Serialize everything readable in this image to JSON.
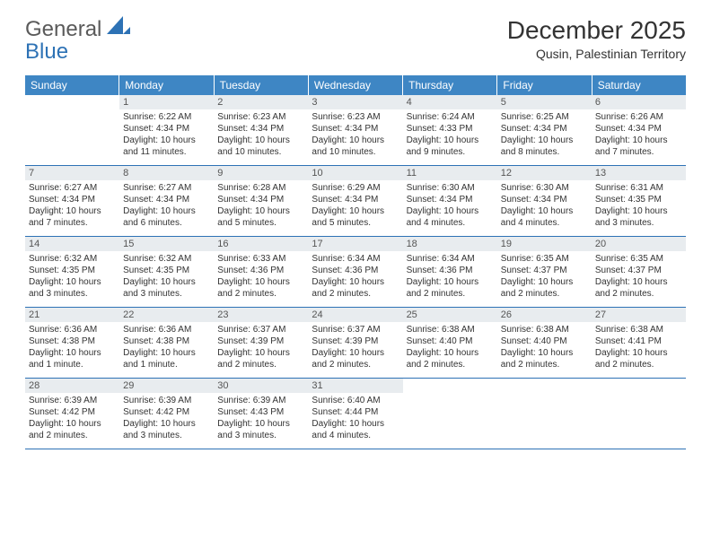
{
  "logo": {
    "part1": "General",
    "part2": "Blue"
  },
  "title": "December 2025",
  "location": "Qusin, Palestinian Territory",
  "colors": {
    "header_bg": "#3e86c4",
    "accent": "#2d72b5",
    "daynum_bg": "#e8ecef",
    "text": "#333333"
  },
  "weekdays": [
    "Sunday",
    "Monday",
    "Tuesday",
    "Wednesday",
    "Thursday",
    "Friday",
    "Saturday"
  ],
  "weeks": [
    [
      null,
      {
        "n": "1",
        "sr": "6:22 AM",
        "ss": "4:34 PM",
        "dl": "10 hours and 11 minutes."
      },
      {
        "n": "2",
        "sr": "6:23 AM",
        "ss": "4:34 PM",
        "dl": "10 hours and 10 minutes."
      },
      {
        "n": "3",
        "sr": "6:23 AM",
        "ss": "4:34 PM",
        "dl": "10 hours and 10 minutes."
      },
      {
        "n": "4",
        "sr": "6:24 AM",
        "ss": "4:33 PM",
        "dl": "10 hours and 9 minutes."
      },
      {
        "n": "5",
        "sr": "6:25 AM",
        "ss": "4:34 PM",
        "dl": "10 hours and 8 minutes."
      },
      {
        "n": "6",
        "sr": "6:26 AM",
        "ss": "4:34 PM",
        "dl": "10 hours and 7 minutes."
      }
    ],
    [
      {
        "n": "7",
        "sr": "6:27 AM",
        "ss": "4:34 PM",
        "dl": "10 hours and 7 minutes."
      },
      {
        "n": "8",
        "sr": "6:27 AM",
        "ss": "4:34 PM",
        "dl": "10 hours and 6 minutes."
      },
      {
        "n": "9",
        "sr": "6:28 AM",
        "ss": "4:34 PM",
        "dl": "10 hours and 5 minutes."
      },
      {
        "n": "10",
        "sr": "6:29 AM",
        "ss": "4:34 PM",
        "dl": "10 hours and 5 minutes."
      },
      {
        "n": "11",
        "sr": "6:30 AM",
        "ss": "4:34 PM",
        "dl": "10 hours and 4 minutes."
      },
      {
        "n": "12",
        "sr": "6:30 AM",
        "ss": "4:34 PM",
        "dl": "10 hours and 4 minutes."
      },
      {
        "n": "13",
        "sr": "6:31 AM",
        "ss": "4:35 PM",
        "dl": "10 hours and 3 minutes."
      }
    ],
    [
      {
        "n": "14",
        "sr": "6:32 AM",
        "ss": "4:35 PM",
        "dl": "10 hours and 3 minutes."
      },
      {
        "n": "15",
        "sr": "6:32 AM",
        "ss": "4:35 PM",
        "dl": "10 hours and 3 minutes."
      },
      {
        "n": "16",
        "sr": "6:33 AM",
        "ss": "4:36 PM",
        "dl": "10 hours and 2 minutes."
      },
      {
        "n": "17",
        "sr": "6:34 AM",
        "ss": "4:36 PM",
        "dl": "10 hours and 2 minutes."
      },
      {
        "n": "18",
        "sr": "6:34 AM",
        "ss": "4:36 PM",
        "dl": "10 hours and 2 minutes."
      },
      {
        "n": "19",
        "sr": "6:35 AM",
        "ss": "4:37 PM",
        "dl": "10 hours and 2 minutes."
      },
      {
        "n": "20",
        "sr": "6:35 AM",
        "ss": "4:37 PM",
        "dl": "10 hours and 2 minutes."
      }
    ],
    [
      {
        "n": "21",
        "sr": "6:36 AM",
        "ss": "4:38 PM",
        "dl": "10 hours and 1 minute."
      },
      {
        "n": "22",
        "sr": "6:36 AM",
        "ss": "4:38 PM",
        "dl": "10 hours and 1 minute."
      },
      {
        "n": "23",
        "sr": "6:37 AM",
        "ss": "4:39 PM",
        "dl": "10 hours and 2 minutes."
      },
      {
        "n": "24",
        "sr": "6:37 AM",
        "ss": "4:39 PM",
        "dl": "10 hours and 2 minutes."
      },
      {
        "n": "25",
        "sr": "6:38 AM",
        "ss": "4:40 PM",
        "dl": "10 hours and 2 minutes."
      },
      {
        "n": "26",
        "sr": "6:38 AM",
        "ss": "4:40 PM",
        "dl": "10 hours and 2 minutes."
      },
      {
        "n": "27",
        "sr": "6:38 AM",
        "ss": "4:41 PM",
        "dl": "10 hours and 2 minutes."
      }
    ],
    [
      {
        "n": "28",
        "sr": "6:39 AM",
        "ss": "4:42 PM",
        "dl": "10 hours and 2 minutes."
      },
      {
        "n": "29",
        "sr": "6:39 AM",
        "ss": "4:42 PM",
        "dl": "10 hours and 3 minutes."
      },
      {
        "n": "30",
        "sr": "6:39 AM",
        "ss": "4:43 PM",
        "dl": "10 hours and 3 minutes."
      },
      {
        "n": "31",
        "sr": "6:40 AM",
        "ss": "4:44 PM",
        "dl": "10 hours and 4 minutes."
      },
      null,
      null,
      null
    ]
  ],
  "labels": {
    "sunrise": "Sunrise:",
    "sunset": "Sunset:",
    "daylight": "Daylight:"
  }
}
